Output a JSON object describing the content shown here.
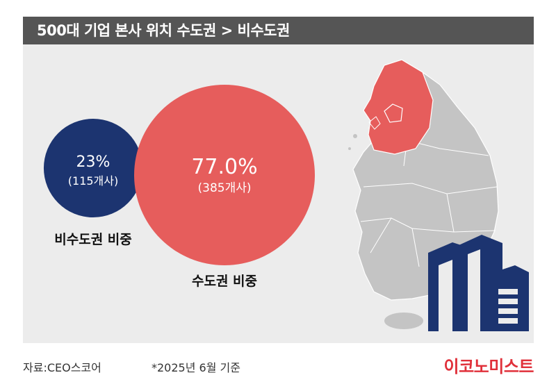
{
  "title": "500대 기업 본사 위치 수도권 > 비수도권",
  "chart_data": {
    "type": "bubble",
    "unit_label": "개사",
    "series": [
      {
        "name": "비수도권 비중",
        "percent_text": "23%",
        "percent": 23,
        "count_text": "(115개사)",
        "count": 115,
        "color": "#1c3470"
      },
      {
        "name": "수도권 비중",
        "percent_text": "77.0%",
        "percent": 77.0,
        "count_text": "(385개사)",
        "count": 385,
        "color": "#e65d5c"
      }
    ]
  },
  "footer": {
    "source": "자료:CEO스코어",
    "note": "*2025년 6월 기준",
    "logo": "이코노미스트"
  },
  "colors": {
    "header_bg": "#555555",
    "panel_bg": "#ececec",
    "capital_region": "#e65d5c",
    "map_gray": "#c4c4c4",
    "building_navy": "#1c3470",
    "logo_red": "#e0303a"
  },
  "icons": [
    "korea-map-icon",
    "building-icon"
  ]
}
